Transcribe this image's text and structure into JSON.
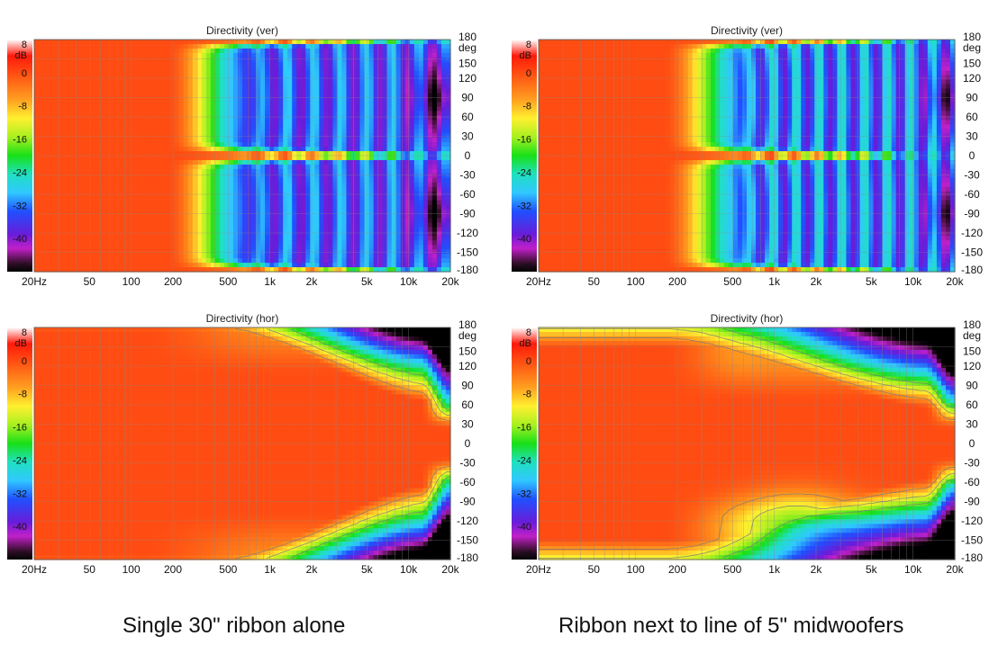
{
  "chart_data": [
    {
      "type": "heatmap",
      "title": "Directivity (ver)",
      "caption": "Single 30\" ribbon alone",
      "color_unit": "dB",
      "color_ticks": [
        "8",
        "0",
        "-8",
        "-16",
        "-24",
        "-32",
        "-40",
        "-48"
      ],
      "color_range": [
        -48,
        8
      ],
      "x_scale": "log",
      "x_range": [
        20,
        20000
      ],
      "x_ticks": [
        {
          "value": 20,
          "label": "20Hz"
        },
        {
          "value": 50,
          "label": "50"
        },
        {
          "value": 100,
          "label": "100"
        },
        {
          "value": 200,
          "label": "200"
        },
        {
          "value": 500,
          "label": "500"
        },
        {
          "value": 1000,
          "label": "1k"
        },
        {
          "value": 2000,
          "label": "2k"
        },
        {
          "value": 5000,
          "label": "5k"
        },
        {
          "value": 10000,
          "label": "10k"
        },
        {
          "value": 20000,
          "label": "20k"
        }
      ],
      "y_unit": "deg",
      "y_range": [
        -180,
        180
      ],
      "y_ticks": [
        180,
        150,
        120,
        90,
        60,
        30,
        0,
        -30,
        -60,
        -90,
        -120,
        -150,
        -180
      ],
      "grid": true,
      "pattern": "vertical_single"
    },
    {
      "type": "heatmap",
      "title": "Directivity (ver)",
      "caption": "Ribbon next to line of 5\" midwoofers",
      "color_unit": "dB",
      "color_ticks": [
        "8",
        "0",
        "-8",
        "-16",
        "-24",
        "-32",
        "-40",
        "-48"
      ],
      "color_range": [
        -48,
        8
      ],
      "x_scale": "log",
      "x_range": [
        20,
        20000
      ],
      "x_ticks": [
        {
          "value": 20,
          "label": "20Hz"
        },
        {
          "value": 50,
          "label": "50"
        },
        {
          "value": 100,
          "label": "100"
        },
        {
          "value": 200,
          "label": "200"
        },
        {
          "value": 500,
          "label": "500"
        },
        {
          "value": 1000,
          "label": "1k"
        },
        {
          "value": 2000,
          "label": "2k"
        },
        {
          "value": 5000,
          "label": "5k"
        },
        {
          "value": 10000,
          "label": "10k"
        },
        {
          "value": 20000,
          "label": "20k"
        }
      ],
      "y_unit": "deg",
      "y_range": [
        -180,
        180
      ],
      "y_ticks": [
        180,
        150,
        120,
        90,
        60,
        30,
        0,
        -30,
        -60,
        -90,
        -120,
        -150,
        -180
      ],
      "grid": true,
      "pattern": "vertical_array"
    },
    {
      "type": "heatmap",
      "title": "Directivity (hor)",
      "color_unit": "dB",
      "color_ticks": [
        "8",
        "0",
        "-8",
        "-16",
        "-24",
        "-32",
        "-40",
        "-48"
      ],
      "color_range": [
        -48,
        8
      ],
      "x_scale": "log",
      "x_range": [
        20,
        20000
      ],
      "x_ticks": [
        {
          "value": 20,
          "label": "20Hz"
        },
        {
          "value": 50,
          "label": "50"
        },
        {
          "value": 100,
          "label": "100"
        },
        {
          "value": 200,
          "label": "200"
        },
        {
          "value": 500,
          "label": "500"
        },
        {
          "value": 1000,
          "label": "1k"
        },
        {
          "value": 2000,
          "label": "2k"
        },
        {
          "value": 5000,
          "label": "5k"
        },
        {
          "value": 10000,
          "label": "10k"
        },
        {
          "value": 20000,
          "label": "20k"
        }
      ],
      "y_unit": "deg",
      "y_range": [
        -180,
        180
      ],
      "y_ticks": [
        180,
        150,
        120,
        90,
        60,
        30,
        0,
        -30,
        -60,
        -90,
        -120,
        -150,
        -180
      ],
      "grid": true,
      "pattern": "horizontal_single"
    },
    {
      "type": "heatmap",
      "title": "Directivity (hor)",
      "color_unit": "dB",
      "color_ticks": [
        "8",
        "0",
        "-8",
        "-16",
        "-24",
        "-32",
        "-40",
        "-48"
      ],
      "color_range": [
        -48,
        8
      ],
      "x_scale": "log",
      "x_range": [
        20,
        20000
      ],
      "x_ticks": [
        {
          "value": 20,
          "label": "20Hz"
        },
        {
          "value": 50,
          "label": "50"
        },
        {
          "value": 100,
          "label": "100"
        },
        {
          "value": 200,
          "label": "200"
        },
        {
          "value": 500,
          "label": "500"
        },
        {
          "value": 1000,
          "label": "1k"
        },
        {
          "value": 2000,
          "label": "2k"
        },
        {
          "value": 5000,
          "label": "5k"
        },
        {
          "value": 10000,
          "label": "10k"
        },
        {
          "value": 20000,
          "label": "20k"
        }
      ],
      "y_unit": "deg",
      "y_range": [
        -180,
        180
      ],
      "y_ticks": [
        180,
        150,
        120,
        90,
        60,
        30,
        0,
        -30,
        -60,
        -90,
        -120,
        -150,
        -180
      ],
      "grid": true,
      "pattern": "horizontal_array"
    }
  ],
  "colors": {
    "scale_stops": [
      "#ffffff",
      "#ff1a0a",
      "#ff4a12",
      "#ffa020",
      "#fff030",
      "#a8f020",
      "#18e018",
      "#20e0c0",
      "#30c8ff",
      "#2050ff",
      "#6a1cd8",
      "#c020c8",
      "#3a1030",
      "#000000"
    ],
    "grid": "#8a8a8a",
    "contour": "#7a7a7a"
  }
}
